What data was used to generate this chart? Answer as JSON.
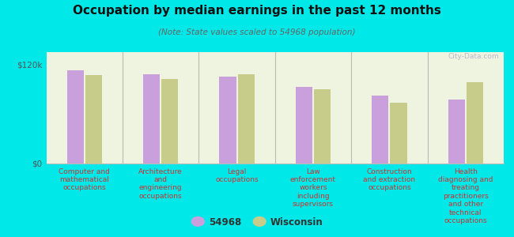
{
  "title": "Occupation by median earnings in the past 12 months",
  "subtitle": "(Note: State values scaled to 54968 population)",
  "categories": [
    "Computer and\nmathematical\noccupations",
    "Architecture\nand\nengineering\noccupations",
    "Legal\noccupations",
    "Law\nenforcement\nworkers\nincluding\nsupervisors",
    "Construction\nand extraction\noccupations",
    "Health\ndiagnosing and\ntreating\npractitioners\nand other\ntechnical\noccupations"
  ],
  "values_54968": [
    113000,
    108000,
    105000,
    93000,
    82000,
    78000
  ],
  "values_wisconsin": [
    107000,
    102000,
    108000,
    90000,
    74000,
    99000
  ],
  "bar_color_54968": "#c9a0dc",
  "bar_color_wisconsin": "#c8cc8a",
  "background_color": "#00e8e8",
  "plot_bg_color": "#eef4e0",
  "yticks": [
    0,
    120000
  ],
  "ytick_labels": [
    "$0",
    "$120k"
  ],
  "ylim": [
    0,
    135000
  ],
  "legend_label_54968": "54968",
  "legend_label_wisconsin": "Wisconsin",
  "watermark": "City-Data.com",
  "title_fontsize": 11,
  "subtitle_fontsize": 7.5,
  "xlabel_fontsize": 6.5,
  "xlabel_color": "#cc3333",
  "ytick_fontsize": 7.5,
  "ytick_color": "#555555"
}
